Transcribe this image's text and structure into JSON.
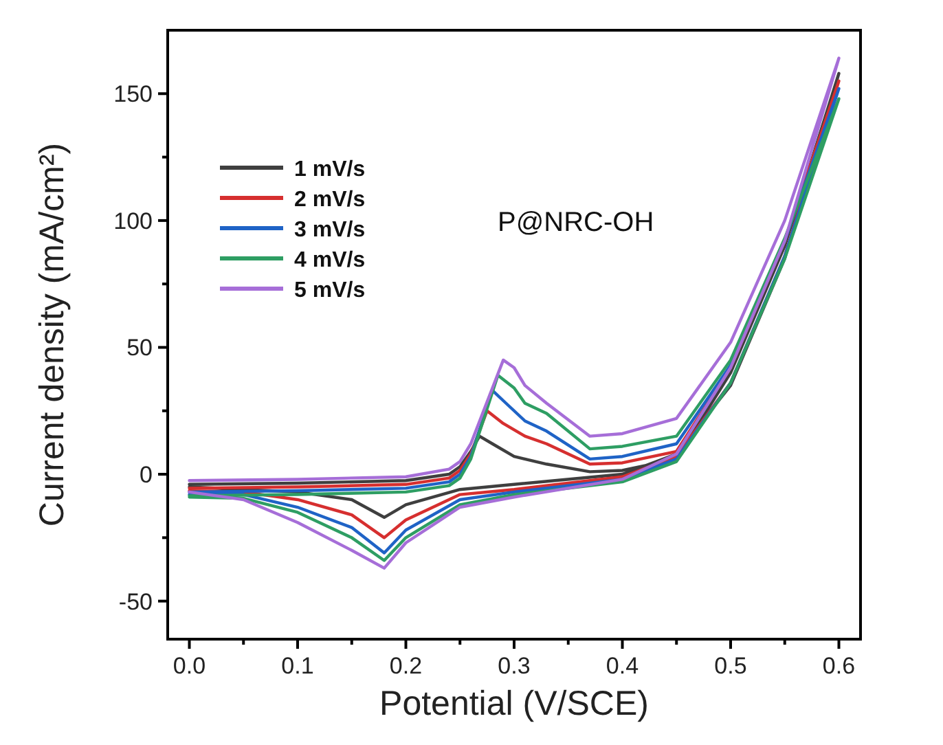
{
  "chart_data": {
    "type": "line",
    "xlabel": "Potential (V/SCE)",
    "ylabel": "Current density (mA/cm²)",
    "annotations": [
      "P@NRC-OH"
    ],
    "xlim": [
      -0.02,
      0.62
    ],
    "ylim": [
      -65,
      175
    ],
    "xticks": [
      {
        "value": 0,
        "label": "0.0"
      },
      {
        "value": 0.05,
        "label": null
      },
      {
        "value": 0.1,
        "label": "0.1"
      },
      {
        "value": 0.15,
        "label": null
      },
      {
        "value": 0.2,
        "label": "0.2"
      },
      {
        "value": 0.25,
        "label": null
      },
      {
        "value": 0.3,
        "label": "0.3"
      },
      {
        "value": 0.35,
        "label": null
      },
      {
        "value": 0.4,
        "label": "0.4"
      },
      {
        "value": 0.45,
        "label": null
      },
      {
        "value": 0.5,
        "label": "0.5"
      },
      {
        "value": 0.55,
        "label": null
      },
      {
        "value": 0.6,
        "label": "0.6"
      }
    ],
    "yticks": [
      -50,
      {
        "value": -25,
        "label": null
      },
      0,
      {
        "value": 25,
        "label": null
      },
      50,
      {
        "value": 75,
        "label": null
      },
      100,
      {
        "value": 125,
        "label": null
      },
      150
    ],
    "legend": "top left",
    "grid": false,
    "marker": "none",
    "line_style": "solid",
    "series": [
      {
        "name": "1 mV/s",
        "color": "#3f3f3f",
        "x": [
          0,
          0.1,
          0.2,
          0.24,
          0.25,
          0.26,
          0.268,
          0.28,
          0.3,
          0.33,
          0.37,
          0.4,
          0.45,
          0.5,
          0.55,
          0.6,
          0.55,
          0.5,
          0.45,
          0.4,
          0.3,
          0.25,
          0.2,
          0.18,
          0.15,
          0.1,
          0.05,
          0
        ],
        "values": [
          -4,
          -3.5,
          -2.5,
          0,
          3,
          9,
          15,
          12,
          7,
          4,
          1,
          1.5,
          6,
          40,
          90,
          158,
          85,
          35,
          8,
          0,
          -4,
          -6,
          -12,
          -17,
          -10,
          -7,
          -6,
          -5
        ]
      },
      {
        "name": "2 mV/s",
        "color": "#d62f2f",
        "x": [
          0,
          0.1,
          0.2,
          0.24,
          0.25,
          0.26,
          0.275,
          0.29,
          0.31,
          0.33,
          0.37,
          0.4,
          0.45,
          0.5,
          0.55,
          0.6,
          0.55,
          0.5,
          0.45,
          0.4,
          0.3,
          0.25,
          0.2,
          0.18,
          0.15,
          0.1,
          0.05,
          0
        ],
        "values": [
          -5.5,
          -5,
          -4,
          -1.5,
          1.5,
          8,
          25,
          20,
          15,
          12,
          4,
          4.5,
          9,
          42,
          92,
          155,
          86,
          36,
          7,
          -1,
          -6,
          -8,
          -18,
          -25,
          -16,
          -10,
          -7,
          -6.5
        ]
      },
      {
        "name": "3 mV/s",
        "color": "#1f63c6",
        "x": [
          0,
          0.1,
          0.2,
          0.24,
          0.25,
          0.26,
          0.28,
          0.29,
          0.31,
          0.33,
          0.37,
          0.4,
          0.45,
          0.5,
          0.55,
          0.6,
          0.55,
          0.5,
          0.45,
          0.4,
          0.3,
          0.25,
          0.2,
          0.18,
          0.15,
          0.1,
          0.05,
          0
        ],
        "values": [
          -7,
          -6.5,
          -5.5,
          -3,
          0,
          7,
          33,
          29,
          21,
          17,
          6,
          7,
          12,
          43,
          92,
          152,
          86,
          36,
          6,
          -2,
          -7,
          -10,
          -22,
          -31,
          -21,
          -13,
          -8,
          -8
        ]
      },
      {
        "name": "4 mV/s",
        "color": "#2e9e63",
        "x": [
          0,
          0.1,
          0.2,
          0.24,
          0.25,
          0.26,
          0.285,
          0.3,
          0.31,
          0.33,
          0.37,
          0.4,
          0.45,
          0.5,
          0.55,
          0.6,
          0.55,
          0.5,
          0.45,
          0.4,
          0.3,
          0.25,
          0.2,
          0.18,
          0.15,
          0.1,
          0.05,
          0
        ],
        "values": [
          -8.5,
          -8,
          -7,
          -4.5,
          -1.5,
          6,
          39,
          34,
          28,
          24,
          10,
          11,
          15,
          45,
          93,
          148,
          85,
          36,
          5,
          -3,
          -8,
          -12,
          -25,
          -34,
          -25,
          -15,
          -9.5,
          -9
        ]
      },
      {
        "name": "5 mV/s",
        "color": "#a66ed8",
        "x": [
          0,
          0.1,
          0.2,
          0.24,
          0.25,
          0.26,
          0.29,
          0.3,
          0.31,
          0.33,
          0.37,
          0.4,
          0.45,
          0.5,
          0.55,
          0.6,
          0.55,
          0.5,
          0.45,
          0.4,
          0.3,
          0.25,
          0.2,
          0.18,
          0.15,
          0.1,
          0.05,
          0
        ],
        "values": [
          -2.5,
          -2,
          -1,
          2,
          5,
          12,
          45,
          42,
          35,
          28,
          15,
          16,
          22,
          52,
          100,
          164,
          92,
          42,
          8,
          -2,
          -9,
          -13,
          -27,
          -37,
          -30,
          -19,
          -10,
          -7
        ]
      }
    ]
  }
}
